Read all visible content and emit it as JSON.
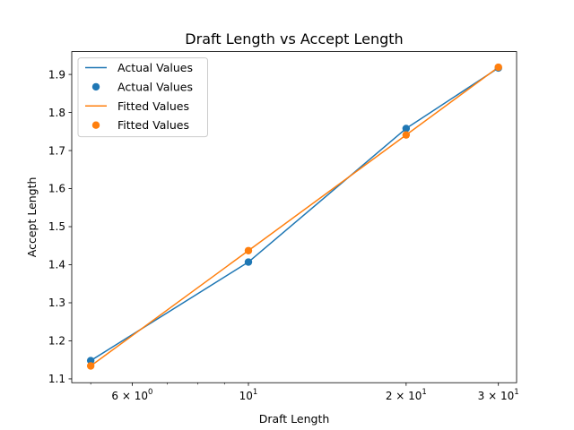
{
  "chart_data": {
    "type": "line",
    "title": "Draft Length vs Accept Length",
    "xlabel": "Draft Length",
    "ylabel": "Accept Length",
    "xscale": "log",
    "x": [
      5,
      10,
      20,
      30
    ],
    "xlim": [
      4.6,
      32.5
    ],
    "ylim": [
      1.09,
      1.96
    ],
    "series": [
      {
        "name": "Actual Values",
        "style": "line",
        "color": "#1f77b4",
        "values": [
          1.148,
          1.407,
          1.758,
          1.917
        ]
      },
      {
        "name": "Actual Values",
        "style": "scatter",
        "color": "#1f77b4",
        "values": [
          1.148,
          1.407,
          1.758,
          1.917
        ]
      },
      {
        "name": "Fitted Values",
        "style": "line",
        "color": "#ff7f0e",
        "values": [
          1.134,
          1.437,
          1.741,
          1.919
        ]
      },
      {
        "name": "Fitted Values",
        "style": "scatter",
        "color": "#ff7f0e",
        "values": [
          1.134,
          1.437,
          1.741,
          1.919
        ]
      }
    ],
    "yticks": [
      1.1,
      1.2,
      1.3,
      1.4,
      1.5,
      1.6,
      1.7,
      1.8,
      1.9
    ],
    "ytick_labels": [
      "1.1",
      "1.2",
      "1.3",
      "1.4",
      "1.5",
      "1.6",
      "1.7",
      "1.8",
      "1.9"
    ],
    "xticks": [
      {
        "value": 6,
        "base": "6 × 10",
        "exp": "0"
      },
      {
        "value": 10,
        "base": "10",
        "exp": "1"
      },
      {
        "value": 20,
        "base": "2 × 10",
        "exp": "1"
      },
      {
        "value": 30,
        "base": "3 × 10",
        "exp": "1"
      }
    ],
    "x_minor_ticks": [
      5,
      7,
      8,
      9
    ],
    "grid": false,
    "legend": "upper-left"
  }
}
